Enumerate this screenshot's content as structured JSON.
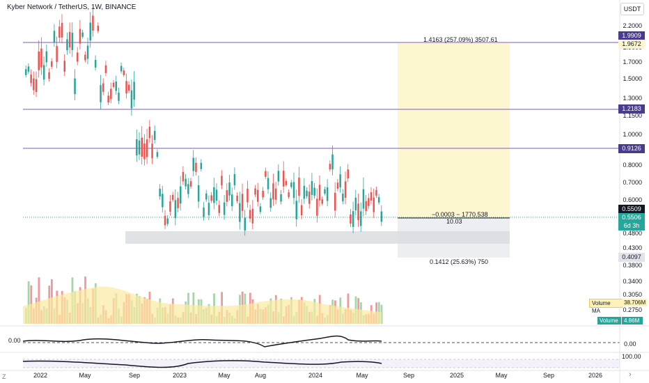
{
  "header": {
    "symbol_title": "Kyber Network / TetherUS, 1W, BINANCE",
    "currency_button": "USDT"
  },
  "price_axis": {
    "ticks": [
      "2.2000",
      "2.0000",
      "1.9000",
      "1.7000",
      "1.5000",
      "1.3000",
      "1.1500",
      "1.0000",
      "0.8000",
      "0.7000",
      "0.6000",
      "0.4800",
      "0.4300",
      "0.3800",
      "0.3400",
      "0.3050",
      "0.2750"
    ],
    "levels": {
      "level_1": "1.9909",
      "level_2": "1.9672",
      "level_3": "1.2183",
      "level_4": "0.9126",
      "current_dark": "0.5509",
      "current_green": "0.5506",
      "countdown": "6d 3h",
      "stop": "0.4097"
    }
  },
  "time_axis": {
    "ticks": [
      "2022",
      "May",
      "Sep",
      "2023",
      "May",
      "Aug",
      "2024",
      "May",
      "Sep",
      "2025",
      "May",
      "Sep",
      "2026"
    ]
  },
  "position_tool": {
    "target_label": "1.4163 (257.09%) 3507.61",
    "entry_label": "−0.0003 − 1770.538",
    "ratio_label": "10.03",
    "stop_label": "0.1412 (25.63%) 750"
  },
  "volume_panel": {
    "ma_label": "Volume MA",
    "ma_value": "38.706M",
    "vol_label": "Volume",
    "vol_value": "4.86M"
  },
  "oscillator_1": {
    "left_value": "0.00",
    "right_value": "0.00"
  },
  "oscillator_2": {
    "right_value": "100.00"
  },
  "footer": {
    "left_letter": "Z",
    "goto_icon": "chevron-right-icon"
  },
  "colors": {
    "up": "#26a69a",
    "down": "#ef5350",
    "level_line": "#7e57c2",
    "level_badge": "#4a3c8c",
    "target_zone": "#fdf7d1",
    "stop_zone": "#eceef2"
  }
}
